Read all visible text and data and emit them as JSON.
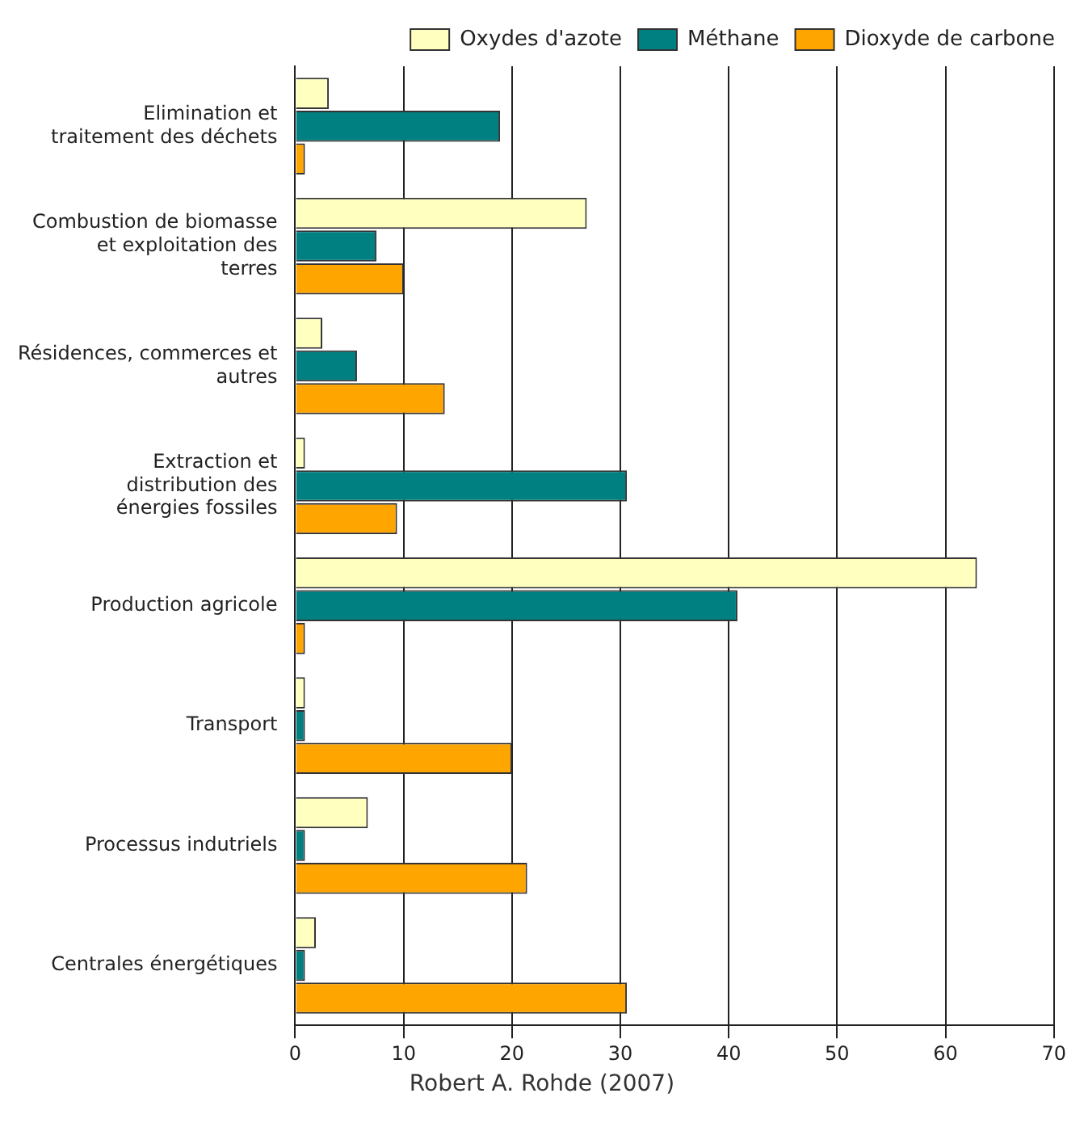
{
  "chart_data": {
    "type": "bar",
    "orientation": "horizontal",
    "categories": [
      "Elimination et traitement des déchets",
      "Combustion de biomasse et exploitation des terres",
      "Résidences, commerces et autres",
      "Extraction et distribution des énergies fossiles",
      "Production agricole",
      "Transport",
      "Processus indutriels",
      "Centrales énergétiques"
    ],
    "series": [
      {
        "name": "Oxydes d'azote",
        "color": "#ffffc0",
        "values": [
          3.1,
          26.9,
          2.5,
          0.9,
          62.9,
          0.9,
          6.7,
          1.9
        ]
      },
      {
        "name": "Méthane",
        "color": "#008080",
        "values": [
          18.9,
          7.5,
          5.7,
          30.6,
          40.8,
          0.9,
          0.9,
          0.9
        ]
      },
      {
        "name": "Dioxyde de carbone",
        "color": "#ffa500",
        "values": [
          0.9,
          10,
          13.8,
          9.4,
          0.9,
          20,
          21.4,
          30.6
        ]
      }
    ],
    "xlim": [
      0,
      70
    ],
    "xticks": [
      0,
      10,
      20,
      30,
      40,
      50,
      60,
      70
    ],
    "grid": "x",
    "legend": "top right",
    "annotations": [
      "Robert A. Rohde (2007)"
    ]
  }
}
